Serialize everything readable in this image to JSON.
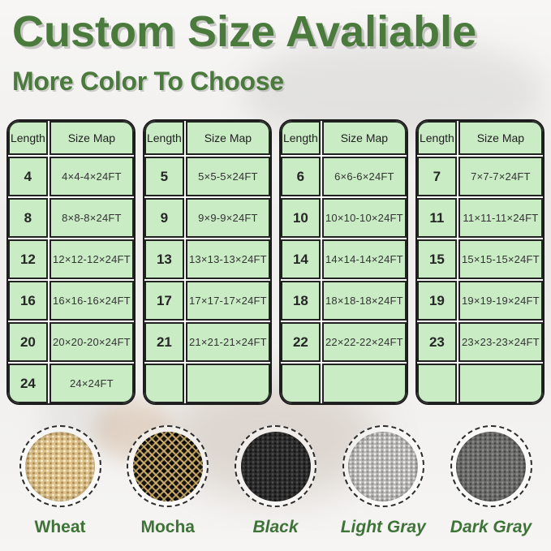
{
  "header": {
    "title": "Custom Size Avaliable",
    "subtitle": "More Color To Choose"
  },
  "tables": [
    {
      "headers": [
        "Length",
        "Size Map"
      ],
      "rows": [
        [
          "4",
          "4×4-4×24FT"
        ],
        [
          "8",
          "8×8-8×24FT"
        ],
        [
          "12",
          "12×12-12×24FT"
        ],
        [
          "16",
          "16×16-16×24FT"
        ],
        [
          "20",
          "20×20-20×24FT"
        ],
        [
          "24",
          "24×24FT"
        ]
      ]
    },
    {
      "headers": [
        "Length",
        "Size Map"
      ],
      "rows": [
        [
          "5",
          "5×5-5×24FT"
        ],
        [
          "9",
          "9×9-9×24FT"
        ],
        [
          "13",
          "13×13-13×24FT"
        ],
        [
          "17",
          "17×17-17×24FT"
        ],
        [
          "21",
          "21×21-21×24FT"
        ],
        [
          "",
          ""
        ]
      ]
    },
    {
      "headers": [
        "Length",
        "Size Map"
      ],
      "rows": [
        [
          "6",
          "6×6-6×24FT"
        ],
        [
          "10",
          "10×10-10×24FT"
        ],
        [
          "14",
          "14×14-14×24FT"
        ],
        [
          "18",
          "18×18-18×24FT"
        ],
        [
          "22",
          "22×22-22×24FT"
        ],
        [
          "",
          ""
        ]
      ]
    },
    {
      "headers": [
        "Length",
        "Size Map"
      ],
      "rows": [
        [
          "7",
          "7×7-7×24FT"
        ],
        [
          "11",
          "11×11-11×24FT"
        ],
        [
          "15",
          "15×15-15×24FT"
        ],
        [
          "19",
          "19×19-19×24FT"
        ],
        [
          "23",
          "23×23-23×24FT"
        ],
        [
          "",
          ""
        ]
      ]
    }
  ],
  "swatches": [
    {
      "key": "wheat",
      "label": "Wheat",
      "color": "#dec088",
      "italic": false
    },
    {
      "key": "mocha",
      "label": "Mocha",
      "color": "#2a2318",
      "italic": false
    },
    {
      "key": "black",
      "label": "Black",
      "color": "#2d2d2d",
      "italic": true
    },
    {
      "key": "light-gray",
      "label": "Light Gray",
      "color": "#b9b8b6",
      "italic": true
    },
    {
      "key": "dark-gray",
      "label": "Dark Gray",
      "color": "#6d6d6b",
      "italic": true
    }
  ],
  "colors": {
    "heading_green": "#4a7b3d",
    "table_fill_green": "#c9ecc5",
    "table_border": "#1c1c1c",
    "label_green": "#3e7338"
  }
}
